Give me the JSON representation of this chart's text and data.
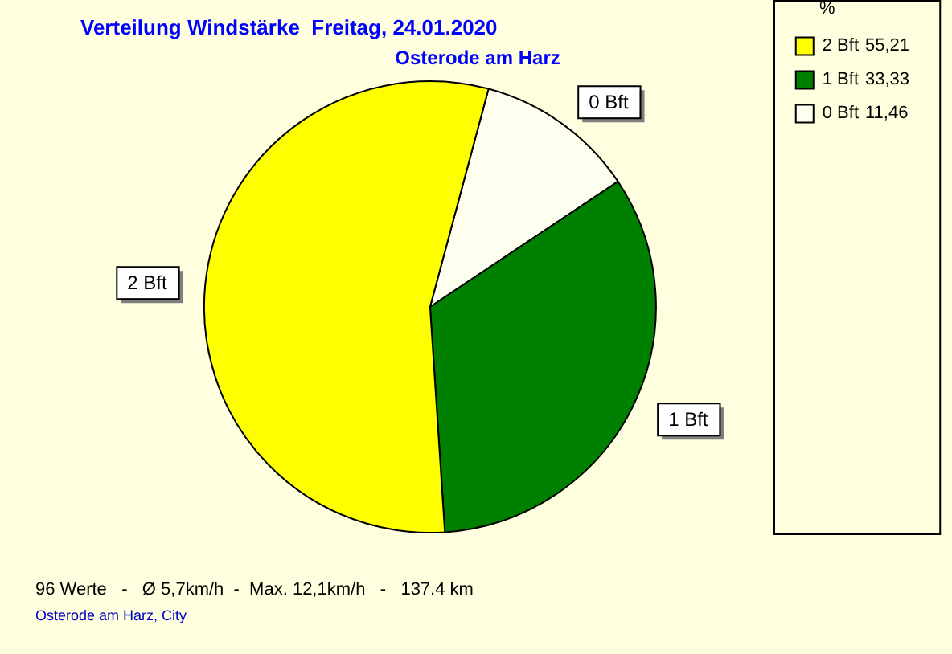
{
  "chart_data": {
    "type": "pie",
    "title": "Verteilung Windstärke  Freitag, 24.01.2020",
    "subtitle": "Osterode am Harz",
    "legend_title": "%",
    "categories": [
      "2 Bft",
      "1 Bft",
      "0 Bft"
    ],
    "values": [
      55.21,
      33.33,
      11.46
    ],
    "value_labels": [
      "55,21",
      "33,33",
      "11,46"
    ],
    "colors": [
      "#ffff00",
      "#008000",
      "#fffff0"
    ],
    "legend": "top right",
    "annotations": [
      "96 Werte   -   Ø 5,7km/h  -  Max. 12,1km/h   -   137.4 km",
      "Osterode am Harz, City"
    ]
  }
}
